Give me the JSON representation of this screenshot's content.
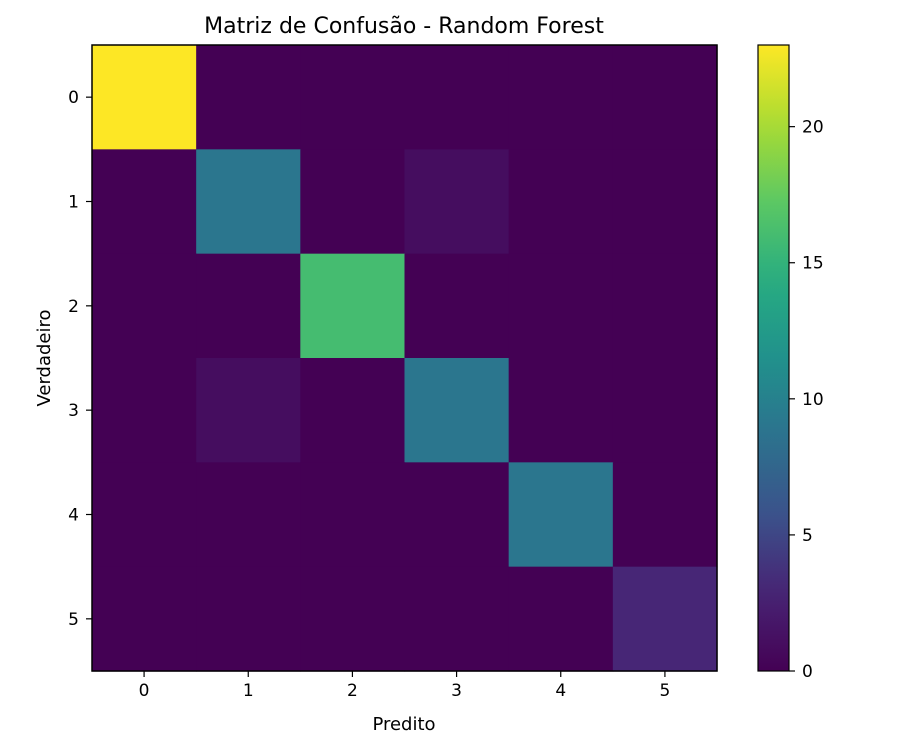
{
  "chart_data": {
    "type": "heatmap",
    "title": "Matriz de Confusão - Random Forest",
    "xlabel": "Predito",
    "ylabel": "Verdadeiro",
    "x_categories": [
      "0",
      "1",
      "2",
      "3",
      "4",
      "5"
    ],
    "y_categories": [
      "0",
      "1",
      "2",
      "3",
      "4",
      "5"
    ],
    "matrix": [
      [
        23,
        0,
        0,
        0,
        0,
        0
      ],
      [
        0,
        9,
        0,
        1,
        0,
        0
      ],
      [
        0,
        0,
        16,
        0,
        0,
        0
      ],
      [
        0,
        1,
        0,
        9,
        0,
        0
      ],
      [
        0,
        0,
        0,
        0,
        9,
        0
      ],
      [
        0,
        0,
        0,
        0,
        0,
        3
      ]
    ],
    "colormap": "viridis",
    "vmin": 0,
    "vmax": 23,
    "colorbar_ticks": [
      0,
      5,
      10,
      15,
      20
    ],
    "grid": false
  }
}
